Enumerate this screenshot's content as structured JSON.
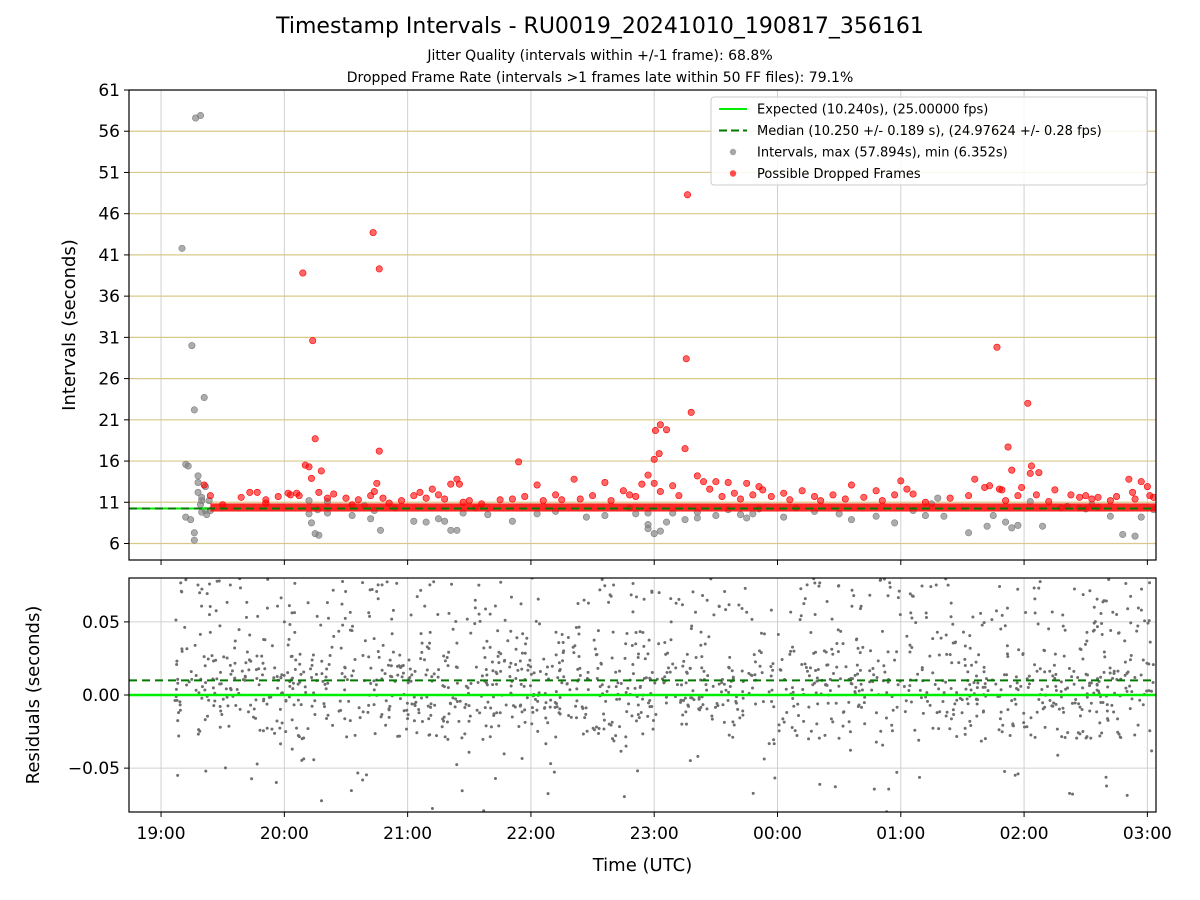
{
  "title": "Timestamp Intervals - RU0019_20241010_190817_356161",
  "subtitle_1": "Jitter Quality (intervals within +/-1 frame): 68.8%",
  "subtitle_2": "Dropped Frame Rate (intervals >1 frames late within 50 FF files): 79.1%",
  "colors": {
    "expected": "#00ee00",
    "median": "#007a00",
    "intervals": "#808080",
    "dropped": "#ff0000",
    "hgrid_top": "#d8c98a",
    "grid": "#d0d0d0"
  },
  "chart_data": [
    {
      "type": "scatter",
      "panel": "top",
      "ylabel": "Intervals (seconds)",
      "xlabel": "",
      "ylim": [
        4,
        61
      ],
      "yticks": [
        6,
        11,
        16,
        21,
        26,
        31,
        36,
        41,
        46,
        51,
        56,
        61
      ],
      "x_unit": "hours since 19:00 UTC",
      "xlim": [
        -0.26,
        8.07
      ],
      "xtick_labels": [
        "19:00",
        "20:00",
        "21:00",
        "22:00",
        "23:00",
        "00:00",
        "01:00",
        "02:00",
        "03:00"
      ],
      "grid": "on",
      "legend_position": "top-right",
      "legend": [
        "Expected (10.240s), (25.00000 fps)",
        "Median (10.250 +/- 0.189 s), (24.97624 +/- 0.28 fps)",
        "Intervals, max (57.894s), min (6.352s)",
        "Possible Dropped Frames"
      ],
      "expected": 10.24,
      "median": 10.25,
      "baseline_band": [
        10.24,
        10.5
      ],
      "series": [
        {
          "name": "Intervals, max (57.894s), min (6.352s)",
          "points": [
            [
              0.17,
              41.8
            ],
            [
              0.2,
              15.6
            ],
            [
              0.22,
              15.4
            ],
            [
              0.2,
              9.2
            ],
            [
              0.24,
              8.9
            ],
            [
              0.25,
              30
            ],
            [
              0.27,
              22.2
            ],
            [
              0.27,
              7.3
            ],
            [
              0.27,
              6.4
            ],
            [
              0.28,
              57.6
            ],
            [
              0.32,
              57.9
            ],
            [
              0.3,
              14.2
            ],
            [
              0.3,
              13.4
            ],
            [
              0.3,
              12.2
            ],
            [
              0.33,
              11.6
            ],
            [
              0.32,
              10.7
            ],
            [
              0.33,
              9.8
            ],
            [
              0.33,
              11.2
            ],
            [
              0.35,
              23.7
            ],
            [
              0.36,
              10
            ],
            [
              0.39,
              11.2
            ],
            [
              0.37,
              9.5
            ],
            [
              0.4,
              10
            ],
            [
              0.36,
              12.9
            ],
            [
              1.2,
              11.2
            ],
            [
              1.2,
              9.6
            ],
            [
              1.22,
              8.5
            ],
            [
              1.25,
              7.2
            ],
            [
              1.28,
              7
            ],
            [
              1.27,
              10.1
            ],
            [
              1.35,
              9.7
            ],
            [
              1.35,
              11.1
            ],
            [
              1.55,
              9.4
            ],
            [
              1.65,
              10.6
            ],
            [
              1.73,
              10
            ],
            [
              1.7,
              9
            ],
            [
              1.78,
              7.6
            ],
            [
              1.9,
              10.3
            ],
            [
              2.05,
              8.7
            ],
            [
              2.15,
              8.6
            ],
            [
              2.25,
              9
            ],
            [
              2.3,
              8.7
            ],
            [
              2.35,
              7.6
            ],
            [
              2.4,
              7.6
            ],
            [
              2.45,
              9.7
            ],
            [
              2.55,
              10.3
            ],
            [
              2.65,
              9.5
            ],
            [
              2.85,
              8.7
            ],
            [
              3.05,
              9.6
            ],
            [
              3.2,
              9.9
            ],
            [
              3.45,
              9.2
            ],
            [
              3.6,
              9.4
            ],
            [
              3.8,
              10.3
            ],
            [
              3.85,
              9.6
            ],
            [
              3.95,
              9.7
            ],
            [
              3.95,
              8.3
            ],
            [
              3.95,
              7.8
            ],
            [
              4.05,
              7.5
            ],
            [
              4,
              7.2
            ],
            [
              4.1,
              8.6
            ],
            [
              4.15,
              9.7
            ],
            [
              4.25,
              8.9
            ],
            [
              4.35,
              9.1
            ],
            [
              4.35,
              9.8
            ],
            [
              4.5,
              9.4
            ],
            [
              4.6,
              10.1
            ],
            [
              4.7,
              9.5
            ],
            [
              4.75,
              9.1
            ],
            [
              4.8,
              9.6
            ],
            [
              4.85,
              10.2
            ],
            [
              5.05,
              9.2
            ],
            [
              5.15,
              10.3
            ],
            [
              5.3,
              9.9
            ],
            [
              5.5,
              9.6
            ],
            [
              5.6,
              8.9
            ],
            [
              5.8,
              9.3
            ],
            [
              5.95,
              8.5
            ],
            [
              6.1,
              10
            ],
            [
              6.2,
              9.4
            ],
            [
              6.25,
              10.8
            ],
            [
              6.3,
              11.5
            ],
            [
              6.35,
              9.3
            ],
            [
              6.55,
              7.3
            ],
            [
              6.7,
              8.1
            ],
            [
              6.75,
              9.4
            ],
            [
              6.85,
              8.6
            ],
            [
              6.9,
              7.9
            ],
            [
              6.95,
              8.2
            ],
            [
              7.05,
              11.1
            ],
            [
              7.15,
              8.1
            ],
            [
              7.3,
              10.3
            ],
            [
              7.35,
              10.5
            ],
            [
              7.45,
              10.3
            ],
            [
              7.5,
              10.2
            ],
            [
              7.55,
              10.7
            ],
            [
              7.6,
              10.4
            ],
            [
              7.7,
              9.3
            ],
            [
              7.8,
              7.1
            ],
            [
              7.9,
              6.9
            ],
            [
              7.95,
              9.2
            ],
            [
              8.05,
              10.1
            ]
          ]
        },
        {
          "name": "Possible Dropped Frames",
          "points": [
            [
              0.35,
              13.1
            ],
            [
              0.4,
              11.8
            ],
            [
              0.5,
              10.7
            ],
            [
              0.65,
              11.6
            ],
            [
              0.72,
              12.2
            ],
            [
              0.78,
              12.2
            ],
            [
              0.85,
              11.3
            ],
            [
              0.85,
              10.9
            ],
            [
              0.95,
              11.7
            ],
            [
              1.03,
              12.1
            ],
            [
              1.05,
              11.9
            ],
            [
              1.1,
              12.1
            ],
            [
              1.12,
              11.8
            ],
            [
              1.15,
              38.8
            ],
            [
              1.17,
              15.5
            ],
            [
              1.2,
              15.3
            ],
            [
              1.22,
              13.9
            ],
            [
              1.23,
              30.6
            ],
            [
              1.25,
              18.7
            ],
            [
              1.28,
              12.2
            ],
            [
              1.3,
              14.8
            ],
            [
              1.35,
              11.5
            ],
            [
              1.4,
              12
            ],
            [
              1.5,
              11.5
            ],
            [
              1.55,
              10.7
            ],
            [
              1.6,
              11.3
            ],
            [
              1.7,
              11.8
            ],
            [
              1.72,
              43.7
            ],
            [
              1.73,
              12.3
            ],
            [
              1.75,
              13.3
            ],
            [
              1.77,
              39.3
            ],
            [
              1.77,
              17.2
            ],
            [
              1.8,
              11.5
            ],
            [
              1.85,
              10.9
            ],
            [
              1.95,
              11.2
            ],
            [
              2.05,
              11.8
            ],
            [
              2.1,
              12.2
            ],
            [
              2.15,
              11.5
            ],
            [
              2.2,
              12.6
            ],
            [
              2.25,
              11.9
            ],
            [
              2.3,
              11.4
            ],
            [
              2.35,
              13.2
            ],
            [
              2.4,
              13.8
            ],
            [
              2.42,
              13.2
            ],
            [
              2.45,
              11
            ],
            [
              2.5,
              11.2
            ],
            [
              2.6,
              10.8
            ],
            [
              2.75,
              11.3
            ],
            [
              2.85,
              11.4
            ],
            [
              2.9,
              15.9
            ],
            [
              2.95,
              11.7
            ],
            [
              3.05,
              13.1
            ],
            [
              3.1,
              11.2
            ],
            [
              3.2,
              11.9
            ],
            [
              3.25,
              11.3
            ],
            [
              3.35,
              13.8
            ],
            [
              3.4,
              11.4
            ],
            [
              3.5,
              11.8
            ],
            [
              3.6,
              13.4
            ],
            [
              3.65,
              11.2
            ],
            [
              3.75,
              12.4
            ],
            [
              3.8,
              11.9
            ],
            [
              3.85,
              11.7
            ],
            [
              3.9,
              13.2
            ],
            [
              3.95,
              14.3
            ],
            [
              4,
              13.3
            ],
            [
              4.05,
              12.3
            ],
            [
              4,
              16.2
            ],
            [
              4.01,
              19.7
            ],
            [
              4.04,
              16.9
            ],
            [
              4.05,
              20.4
            ],
            [
              4.1,
              19.8
            ],
            [
              4.15,
              13
            ],
            [
              4.2,
              11.8
            ],
            [
              4.25,
              17.5
            ],
            [
              4.26,
              28.4
            ],
            [
              4.27,
              48.3
            ],
            [
              4.3,
              21.9
            ],
            [
              4.35,
              14.2
            ],
            [
              4.4,
              13.5
            ],
            [
              4.45,
              12.6
            ],
            [
              4.5,
              13.5
            ],
            [
              4.55,
              11.7
            ],
            [
              4.6,
              13.4
            ],
            [
              4.65,
              12.1
            ],
            [
              4.7,
              11.4
            ],
            [
              4.75,
              13.3
            ],
            [
              4.8,
              11.9
            ],
            [
              4.85,
              12.9
            ],
            [
              4.88,
              12.5
            ],
            [
              4.95,
              11.7
            ],
            [
              5.05,
              12.1
            ],
            [
              5.1,
              11.3
            ],
            [
              5.2,
              12.4
            ],
            [
              5.3,
              11.7
            ],
            [
              5.35,
              11.2
            ],
            [
              5.45,
              11.9
            ],
            [
              5.55,
              11.4
            ],
            [
              5.6,
              13.1
            ],
            [
              5.7,
              11.6
            ],
            [
              5.8,
              12.4
            ],
            [
              5.85,
              11.2
            ],
            [
              5.95,
              11.9
            ],
            [
              6.0,
              13.6
            ],
            [
              6.05,
              12.6
            ],
            [
              6.1,
              12
            ],
            [
              6.2,
              11
            ],
            [
              6.4,
              11.5
            ],
            [
              6.55,
              11.8
            ],
            [
              6.6,
              13.8
            ],
            [
              6.68,
              12.8
            ],
            [
              6.72,
              13
            ],
            [
              6.78,
              29.8
            ],
            [
              6.8,
              12.6
            ],
            [
              6.82,
              12.5
            ],
            [
              6.85,
              11.2
            ],
            [
              6.87,
              17.7
            ],
            [
              6.9,
              14.9
            ],
            [
              6.95,
              11.8
            ],
            [
              6.98,
              12.8
            ],
            [
              7.03,
              23
            ],
            [
              7.06,
              15.4
            ],
            [
              7.05,
              14.5
            ],
            [
              7.1,
              11.9
            ],
            [
              7.12,
              14.6
            ],
            [
              7.2,
              11.1
            ],
            [
              7.25,
              12.5
            ],
            [
              7.38,
              11.9
            ],
            [
              7.45,
              11.6
            ],
            [
              7.5,
              11.8
            ],
            [
              7.55,
              11.4
            ],
            [
              7.6,
              11.6
            ],
            [
              7.7,
              11.2
            ],
            [
              7.75,
              11.7
            ],
            [
              7.85,
              13.8
            ],
            [
              7.88,
              12.2
            ],
            [
              7.9,
              11.4
            ],
            [
              7.95,
              13.5
            ],
            [
              8.0,
              12.9
            ],
            [
              8.02,
              11.8
            ],
            [
              8.05,
              11.6
            ]
          ]
        }
      ]
    },
    {
      "type": "scatter",
      "panel": "bottom",
      "ylabel": "Residuals (seconds)",
      "xlabel": "Time (UTC)",
      "ylim": [
        -0.08,
        0.08
      ],
      "ytick_labels": [
        "0.05",
        "0.00",
        "−0.05"
      ],
      "yticks": [
        0.05,
        0,
        -0.05
      ],
      "x_unit": "hours since 19:00 UTC",
      "xlim": [
        -0.26,
        8.07
      ],
      "xtick_labels": [
        "19:00",
        "20:00",
        "21:00",
        "22:00",
        "23:00",
        "00:00",
        "01:00",
        "02:00",
        "03:00"
      ],
      "grid": "on",
      "expected": 0.0,
      "median": 0.01,
      "points_note": "dense residual cloud, mostly between -0.03 and +0.08 s"
    }
  ]
}
